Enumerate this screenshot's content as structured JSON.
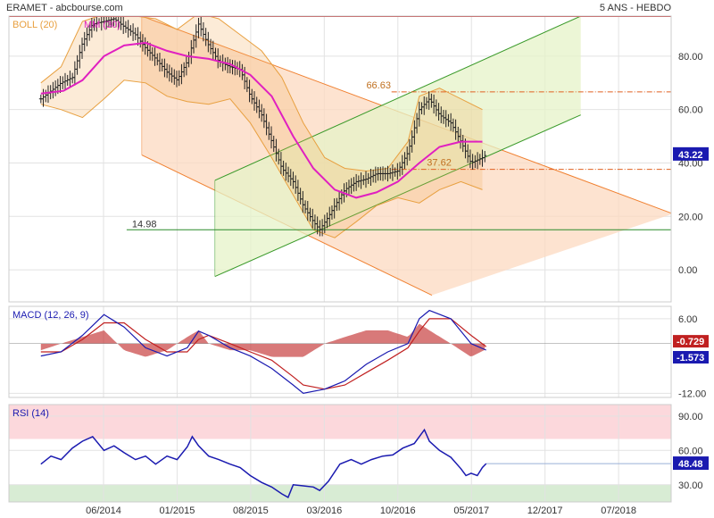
{
  "header": {
    "source": "ERAMET - abcbourse.com",
    "period": "5 ANS - HEBDO"
  },
  "chart_data": [
    {
      "id": "price",
      "type": "line",
      "title": "ERAMET - abcbourse.com",
      "legend": [
        "BOLL (20)",
        "MM (30)"
      ],
      "y_ticks": [
        "80.00",
        "60.00",
        "40.00",
        "20.00",
        "0.00"
      ],
      "ylim": [
        -12,
        95
      ],
      "x_ticks": [
        "06/2014",
        "01/2015",
        "08/2015",
        "03/2016",
        "10/2016",
        "05/2017",
        "12/2017",
        "07/2018"
      ],
      "x_range": [
        "2013-09",
        "2018-12"
      ],
      "last_price": "43.22",
      "annotations": [
        {
          "label": "66.63",
          "value": 66.63,
          "style": "dash-dot",
          "color": "#e06020"
        },
        {
          "label": "37.62",
          "value": 37.62,
          "style": "dash-dot",
          "color": "#e06020"
        },
        {
          "label": "14.98",
          "value": 14.98,
          "style": "solid",
          "color": "#2a8a2a"
        }
      ],
      "channels": [
        {
          "name": "down",
          "color": "#f08030",
          "fill": "#fcd9c0",
          "upper": [
            [
              2014.72,
              95
            ],
            [
              2018.93,
              21
            ]
          ],
          "lower": [
            [
              2014.72,
              43
            ],
            [
              2017.02,
              -9.5
            ]
          ]
        },
        {
          "name": "up",
          "color": "#3a9a2a",
          "fill": "#e6f3c8",
          "upper": [
            [
              2015.3,
              33.5
            ],
            [
              2018.2,
              95
            ]
          ],
          "lower": [
            [
              2015.3,
              -2.5
            ],
            [
              2018.2,
              58
            ]
          ]
        }
      ],
      "series": [
        {
          "name": "price",
          "values": [
            [
              2013.92,
              64
            ],
            [
              2014.0,
              67
            ],
            [
              2014.08,
              70
            ],
            [
              2014.17,
              72
            ],
            [
              2014.25,
              85
            ],
            [
              2014.33,
              92
            ],
            [
              2014.42,
              93
            ],
            [
              2014.5,
              94
            ],
            [
              2014.58,
              91
            ],
            [
              2014.67,
              88
            ],
            [
              2014.75,
              83
            ],
            [
              2014.83,
              79
            ],
            [
              2014.92,
              74
            ],
            [
              2015.0,
              71
            ],
            [
              2015.08,
              78
            ],
            [
              2015.17,
              92
            ],
            [
              2015.25,
              84
            ],
            [
              2015.33,
              78
            ],
            [
              2015.42,
              76
            ],
            [
              2015.5,
              75
            ],
            [
              2015.58,
              65
            ],
            [
              2015.67,
              58
            ],
            [
              2015.75,
              48
            ],
            [
              2015.83,
              38
            ],
            [
              2015.92,
              33
            ],
            [
              2016.0,
              24
            ],
            [
              2016.08,
              18
            ],
            [
              2016.13,
              15
            ],
            [
              2016.2,
              20
            ],
            [
              2016.25,
              24
            ],
            [
              2016.33,
              30
            ],
            [
              2016.42,
              33
            ],
            [
              2016.5,
              34
            ],
            [
              2016.58,
              36
            ],
            [
              2016.67,
              36
            ],
            [
              2016.75,
              37
            ],
            [
              2016.83,
              44
            ],
            [
              2016.92,
              60
            ],
            [
              2017.0,
              64
            ],
            [
              2017.08,
              58
            ],
            [
              2017.17,
              55
            ],
            [
              2017.25,
              48
            ],
            [
              2017.33,
              40
            ],
            [
              2017.42,
              42
            ],
            [
              2017.45,
              43.22
            ]
          ]
        },
        {
          "name": "MM (30)",
          "color": "#e020c0",
          "values": [
            [
              2013.92,
              66
            ],
            [
              2014.1,
              67
            ],
            [
              2014.25,
              71
            ],
            [
              2014.42,
              80
            ],
            [
              2014.58,
              84
            ],
            [
              2014.75,
              85
            ],
            [
              2014.92,
              82
            ],
            [
              2015.08,
              80
            ],
            [
              2015.25,
              79
            ],
            [
              2015.42,
              77
            ],
            [
              2015.58,
              73
            ],
            [
              2015.75,
              65
            ],
            [
              2015.92,
              50
            ],
            [
              2016.08,
              38
            ],
            [
              2016.25,
              30
            ],
            [
              2016.42,
              27
            ],
            [
              2016.58,
              29
            ],
            [
              2016.75,
              33
            ],
            [
              2016.92,
              40
            ],
            [
              2017.08,
              46
            ],
            [
              2017.25,
              48
            ],
            [
              2017.42,
              48
            ]
          ]
        },
        {
          "name": "BOLL upper",
          "values": [
            [
              2013.92,
              70
            ],
            [
              2014.08,
              76
            ],
            [
              2014.25,
              93
            ],
            [
              2014.5,
              97
            ],
            [
              2014.67,
              95
            ],
            [
              2014.83,
              94
            ],
            [
              2015.0,
              90
            ],
            [
              2015.17,
              96
            ],
            [
              2015.33,
              94
            ],
            [
              2015.5,
              88
            ],
            [
              2015.67,
              82
            ],
            [
              2015.83,
              72
            ],
            [
              2016.0,
              55
            ],
            [
              2016.17,
              42
            ],
            [
              2016.33,
              38
            ],
            [
              2016.5,
              37
            ],
            [
              2016.67,
              38
            ],
            [
              2016.83,
              48
            ],
            [
              2016.92,
              65
            ],
            [
              2017.08,
              68
            ],
            [
              2017.25,
              64
            ],
            [
              2017.42,
              60
            ]
          ]
        },
        {
          "name": "BOLL lower",
          "values": [
            [
              2013.92,
              62
            ],
            [
              2014.08,
              60
            ],
            [
              2014.25,
              57
            ],
            [
              2014.42,
              64
            ],
            [
              2014.58,
              71
            ],
            [
              2014.75,
              70
            ],
            [
              2014.92,
              65
            ],
            [
              2015.08,
              63
            ],
            [
              2015.25,
              62
            ],
            [
              2015.42,
              64
            ],
            [
              2015.58,
              55
            ],
            [
              2015.75,
              42
            ],
            [
              2015.92,
              28
            ],
            [
              2016.08,
              15
            ],
            [
              2016.25,
              12
            ],
            [
              2016.42,
              18
            ],
            [
              2016.58,
              24
            ],
            [
              2016.75,
              27
            ],
            [
              2016.92,
              25
            ],
            [
              2017.08,
              30
            ],
            [
              2017.25,
              33
            ],
            [
              2017.42,
              30
            ]
          ]
        }
      ]
    },
    {
      "id": "macd",
      "type": "line",
      "title": "MACD (12, 26, 9)",
      "y_ticks": [
        "6.00",
        "-12.00"
      ],
      "ylim": [
        -13,
        9
      ],
      "last_values": [
        "-0.729",
        "-1.573"
      ],
      "series": [
        {
          "name": "MACD",
          "color": "#1a1ab0",
          "values": [
            [
              2013.92,
              -3
            ],
            [
              2014.08,
              -2
            ],
            [
              2014.25,
              2
            ],
            [
              2014.42,
              7
            ],
            [
              2014.58,
              4
            ],
            [
              2014.75,
              -1
            ],
            [
              2014.92,
              -3
            ],
            [
              2015.08,
              -1
            ],
            [
              2015.17,
              3
            ],
            [
              2015.25,
              2
            ],
            [
              2015.42,
              -1
            ],
            [
              2015.58,
              -3
            ],
            [
              2015.75,
              -6
            ],
            [
              2015.92,
              -10
            ],
            [
              2016.0,
              -12
            ],
            [
              2016.17,
              -11
            ],
            [
              2016.33,
              -9
            ],
            [
              2016.5,
              -5
            ],
            [
              2016.67,
              -2
            ],
            [
              2016.83,
              0
            ],
            [
              2016.92,
              6
            ],
            [
              2017.0,
              8
            ],
            [
              2017.17,
              6
            ],
            [
              2017.33,
              0
            ],
            [
              2017.45,
              -1.573
            ]
          ]
        },
        {
          "name": "Signal",
          "color": "#c02020",
          "values": [
            [
              2013.92,
              -2
            ],
            [
              2014.08,
              -2
            ],
            [
              2014.25,
              1
            ],
            [
              2014.42,
              5
            ],
            [
              2014.58,
              5
            ],
            [
              2014.75,
              1
            ],
            [
              2014.92,
              -2
            ],
            [
              2015.08,
              -2
            ],
            [
              2015.17,
              1
            ],
            [
              2015.25,
              2
            ],
            [
              2015.42,
              0
            ],
            [
              2015.58,
              -2
            ],
            [
              2015.75,
              -4
            ],
            [
              2015.92,
              -8
            ],
            [
              2016.0,
              -10
            ],
            [
              2016.17,
              -11
            ],
            [
              2016.33,
              -10
            ],
            [
              2016.5,
              -7
            ],
            [
              2016.67,
              -4
            ],
            [
              2016.83,
              -1
            ],
            [
              2016.92,
              3
            ],
            [
              2017.0,
              6
            ],
            [
              2017.17,
              6
            ],
            [
              2017.33,
              2
            ],
            [
              2017.45,
              -0.729
            ]
          ]
        }
      ]
    },
    {
      "id": "rsi",
      "type": "line",
      "title": "RSI (14)",
      "y_ticks": [
        "90.00",
        "60.00",
        "30.00"
      ],
      "ylim": [
        15,
        100
      ],
      "zones": [
        {
          "from": 70,
          "to": 100,
          "color": "#fcd8dc"
        },
        {
          "from": 15,
          "to": 30,
          "color": "#d8ecd4"
        }
      ],
      "last_value": "48.48",
      "series": [
        {
          "name": "RSI (14)",
          "color": "#1a1ab0",
          "values": [
            [
              2013.92,
              48
            ],
            [
              2014.0,
              55
            ],
            [
              2014.08,
              52
            ],
            [
              2014.17,
              62
            ],
            [
              2014.25,
              68
            ],
            [
              2014.33,
              72
            ],
            [
              2014.42,
              60
            ],
            [
              2014.5,
              64
            ],
            [
              2014.58,
              58
            ],
            [
              2014.67,
              52
            ],
            [
              2014.75,
              55
            ],
            [
              2014.83,
              48
            ],
            [
              2014.92,
              55
            ],
            [
              2015.0,
              52
            ],
            [
              2015.08,
              63
            ],
            [
              2015.12,
              72
            ],
            [
              2015.17,
              64
            ],
            [
              2015.25,
              55
            ],
            [
              2015.33,
              52
            ],
            [
              2015.42,
              48
            ],
            [
              2015.5,
              45
            ],
            [
              2015.58,
              38
            ],
            [
              2015.67,
              32
            ],
            [
              2015.75,
              28
            ],
            [
              2015.83,
              22
            ],
            [
              2015.88,
              19
            ],
            [
              2015.92,
              30
            ],
            [
              2016.0,
              29
            ],
            [
              2016.08,
              28
            ],
            [
              2016.13,
              25
            ],
            [
              2016.2,
              33
            ],
            [
              2016.29,
              48
            ],
            [
              2016.38,
              52
            ],
            [
              2016.46,
              48
            ],
            [
              2016.54,
              52
            ],
            [
              2016.63,
              55
            ],
            [
              2016.71,
              56
            ],
            [
              2016.79,
              62
            ],
            [
              2016.88,
              66
            ],
            [
              2016.96,
              78
            ],
            [
              2017.0,
              68
            ],
            [
              2017.08,
              60
            ],
            [
              2017.17,
              54
            ],
            [
              2017.25,
              44
            ],
            [
              2017.29,
              38
            ],
            [
              2017.33,
              40
            ],
            [
              2017.38,
              38
            ],
            [
              2017.42,
              45
            ],
            [
              2017.45,
              48.48
            ]
          ]
        }
      ]
    }
  ]
}
